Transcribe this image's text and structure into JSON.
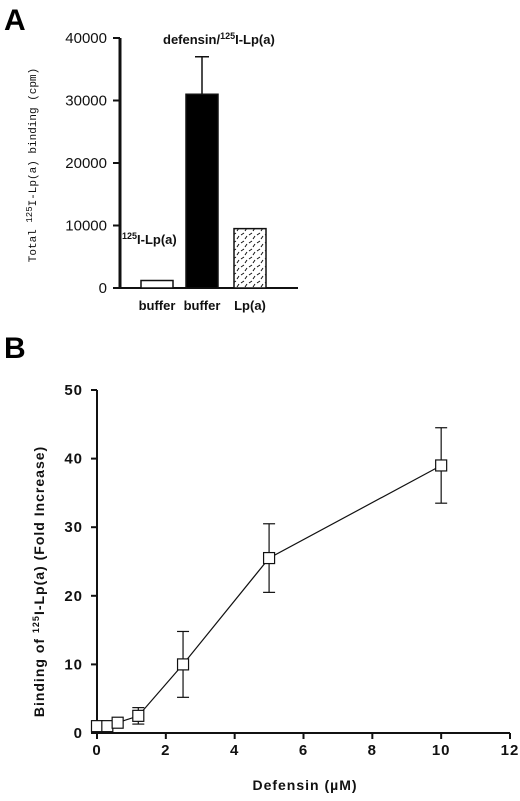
{
  "panels": {
    "a_letter": "A",
    "b_letter": "B"
  },
  "chart_data": [
    {
      "type": "bar",
      "panel": "A",
      "ylabel_prefix": "Total ",
      "ylabel_sup": "125",
      "ylabel_suffix": "I-Lp(a) binding (cpm)",
      "ylim": [
        0,
        40000
      ],
      "yticks": [
        "0",
        "10000",
        "20000",
        "30000",
        "40000"
      ],
      "categories": [
        "buffer",
        "buffer",
        "Lp(a)"
      ],
      "values": [
        1200,
        31000,
        9500
      ],
      "errors": [
        0,
        6000,
        0
      ],
      "fills": [
        "white",
        "black",
        "dashed-pattern"
      ],
      "annotations": [
        {
          "sup": "125",
          "text": "I-Lp(a)"
        },
        {
          "prefix": "defensin/",
          "sup": "125",
          "text": "I-Lp(a)"
        }
      ]
    },
    {
      "type": "line",
      "panel": "B",
      "xlabel": "Defensin (µM)",
      "ylabel_prefix": "Binding of ",
      "ylabel_sup": "125",
      "ylabel_suffix": "I-Lp(a) (Fold Increase)",
      "xlim": [
        0,
        12
      ],
      "ylim": [
        0,
        50
      ],
      "xticks": [
        "0",
        "2",
        "4",
        "6",
        "8",
        "10",
        "12"
      ],
      "yticks": [
        "0",
        "10",
        "20",
        "30",
        "40",
        "50"
      ],
      "x": [
        0,
        0.3,
        0.6,
        1.2,
        2.5,
        5,
        10
      ],
      "y": [
        1,
        1,
        1.5,
        2.5,
        10,
        25.5,
        39
      ],
      "y_error": [
        0,
        0,
        0,
        1.2,
        4.8,
        5,
        5.5
      ],
      "marker": "open-square"
    }
  ]
}
